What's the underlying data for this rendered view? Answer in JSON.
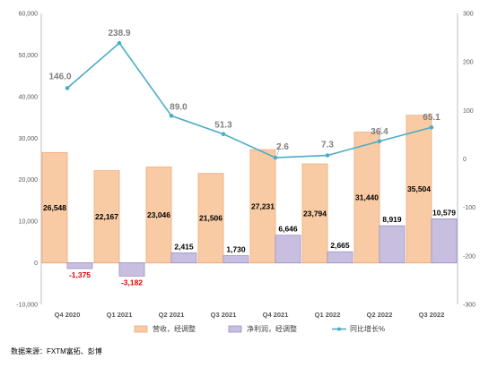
{
  "chart_data": {
    "type": "bar+line",
    "categories": [
      "Q4 2020",
      "Q1 2021",
      "Q2 2021",
      "Q3 2021",
      "Q4 2021",
      "Q1 2022",
      "Q2 2022",
      "Q3 2022"
    ],
    "series": [
      {
        "name": "营收，经调整",
        "type": "bar",
        "axis": "left",
        "color": "#f8cba4",
        "values": [
          26548,
          22167,
          23046,
          21506,
          27231,
          23794,
          31440,
          35504
        ],
        "labels": [
          "26,548",
          "22,167",
          "23,046",
          "21,506",
          "27,231",
          "23,794",
          "31,440",
          "35,504"
        ]
      },
      {
        "name": "净利润，经调整",
        "type": "bar",
        "axis": "left",
        "color": "#c8bfe0",
        "values": [
          -1375,
          -3182,
          2415,
          1730,
          6646,
          2665,
          8919,
          10579
        ],
        "labels": [
          "-1,375",
          "-3,182",
          "2,415",
          "1,730",
          "6,646",
          "2,665",
          "8,919",
          "10,579"
        ]
      },
      {
        "name": "同比增长%",
        "type": "line",
        "axis": "right",
        "color": "#4bacc6",
        "values": [
          146.0,
          238.9,
          89.0,
          51.3,
          2.6,
          7.3,
          36.4,
          65.1
        ],
        "labels": [
          "146.0",
          "238.9",
          "89.0",
          "51.3",
          "2.6",
          "7.3",
          "36.4",
          "65.1"
        ]
      }
    ],
    "y_left": {
      "min": -10000,
      "max": 60000,
      "step": 10000,
      "tick_labels": [
        "-10,000",
        "0",
        "10,000",
        "20,000",
        "30,000",
        "40,000",
        "50,000",
        "60,000"
      ]
    },
    "y_right": {
      "min": -300,
      "max": 300,
      "step": 100,
      "tick_labels": [
        "-300",
        "-200",
        "-100",
        "0",
        "100",
        "200",
        "300"
      ]
    },
    "grid": false,
    "legend_position": "bottom"
  },
  "source_note": "数据来源：FXTM富拓、彭博",
  "colors": {
    "negative_label": "#e00000",
    "axis": "#bfbfbf"
  }
}
